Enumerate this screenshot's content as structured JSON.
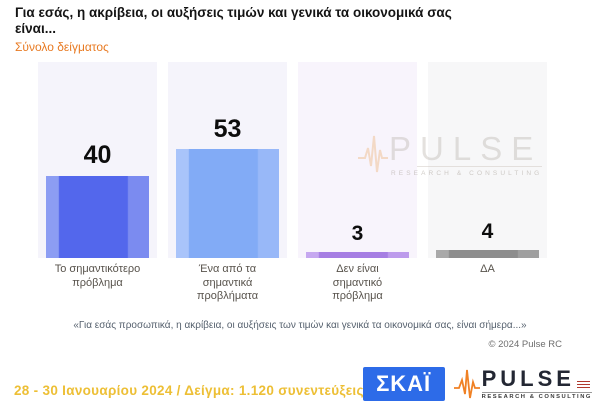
{
  "header": {
    "title": "Για εσάς, η ακρίβεια, οι αυξήσεις τιμών και γενικά τα οικονομικά σας είναι...",
    "subtitle": "Σύνολο δείγματος",
    "subtitle_color": "#E87A22"
  },
  "chart_data": {
    "type": "bar",
    "title": "Για εσάς, η ακρίβεια, οι αυξήσεις τιμών και γενικά τα οικονομικά σας είναι...",
    "subtitle": "Σύνολο δείγματος",
    "categories": [
      "Το σημαντικότερο πρόβλημα",
      "Ένα από τα σημαντικά προβλήματα",
      "Δεν είναι σημαντικό πρόβλημα",
      "ΔΑ"
    ],
    "values": [
      40,
      53,
      3,
      4
    ],
    "value_labels": [
      "40",
      "53",
      "3",
      "4"
    ],
    "ylim": [
      0,
      100
    ],
    "grid": false,
    "legend": false,
    "bar_colors": [
      {
        "edge_left": "#8C9DF3",
        "main": "#5367EC",
        "edge_right": "#7B8BF0"
      },
      {
        "edge_left": "#A9C4FA",
        "main": "#82ABF6",
        "edge_right": "#98B8F8"
      },
      {
        "edge_left": "#C6A8F0",
        "main": "#A67EE3",
        "edge_right": "#BD9BEC"
      },
      {
        "edge_left": "#A9A9A9",
        "main": "#8D8D8D",
        "edge_right": "#9F9F9F"
      }
    ],
    "panel_colors": [
      "#F5F4FB",
      "#F5F4FB",
      "#F8F4FC",
      "#F7F7F8"
    ],
    "value_label_color": "#0d0d0d"
  },
  "watermark": {
    "brand": "PULSE",
    "tagline": "RESEARCH & CONSULTING"
  },
  "quote": "«Για εσάς προσωπικά, η ακρίβεια, οι αυξήσεις των τιμών και γενικά τα οικονομικά σας, είναι σήμερα...»",
  "copyright": "© 2024 Pulse RC",
  "footer": {
    "fieldwork": "28 - 30 Ιανουαρίου 2024 / Δείγμα: 1.120 συνεντεύξεις",
    "fieldwork_color": "#EDBF35",
    "skai_logo_text": "ΣΚΑΪ",
    "skai_color": "#2D6BE8",
    "pulse_brand": "PULSE",
    "pulse_tagline": "RESEARCH & CONSULTING",
    "pulse_accent_color": "#F08124"
  }
}
